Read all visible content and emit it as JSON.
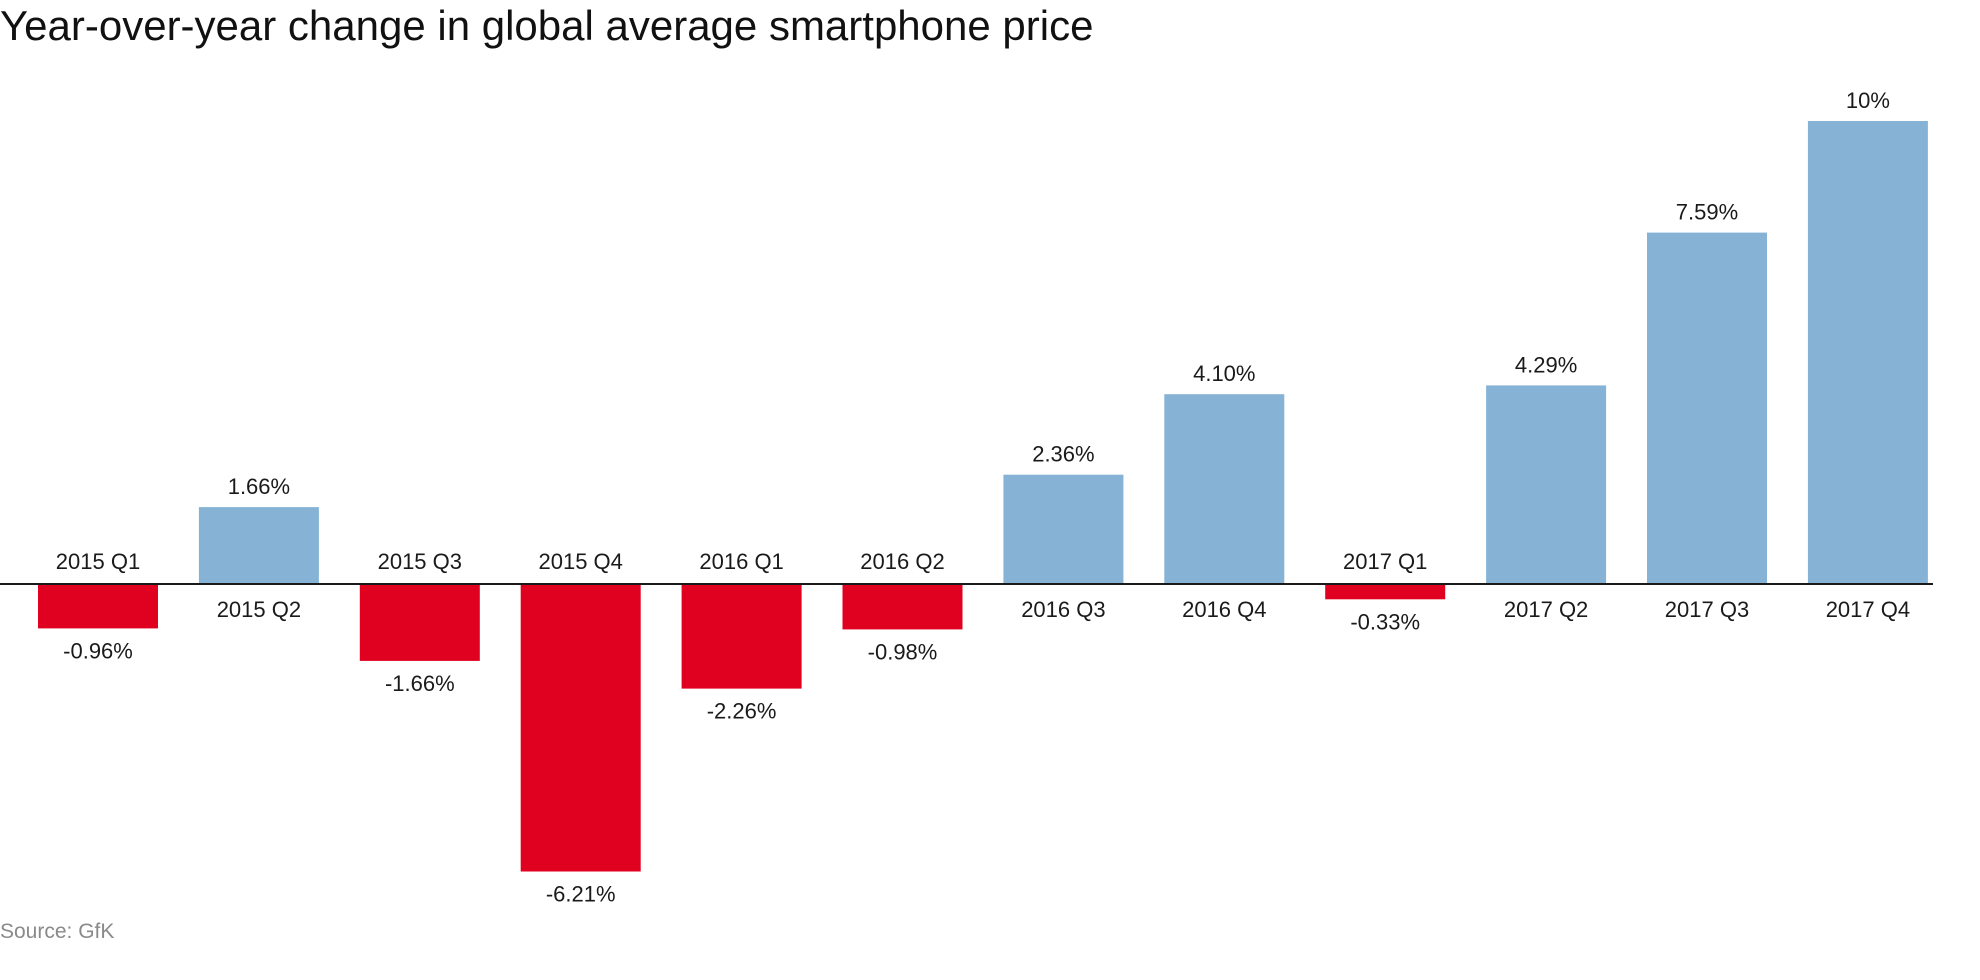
{
  "chart_data": {
    "type": "bar",
    "title": "Year-over-year change in global average smartphone price",
    "xlabel": "",
    "ylabel": "",
    "source": "Source: GfK",
    "categories": [
      "2015 Q1",
      "2015 Q2",
      "2015 Q3",
      "2015 Q4",
      "2016 Q1",
      "2016 Q2",
      "2016 Q3",
      "2016 Q4",
      "2017 Q1",
      "2017 Q2",
      "2017 Q3",
      "2017 Q4"
    ],
    "values": [
      -0.96,
      1.66,
      -1.66,
      -6.21,
      -2.26,
      -0.98,
      2.36,
      4.1,
      -0.33,
      4.29,
      7.59,
      10
    ],
    "value_labels": [
      "-0.96%",
      "1.66%",
      "-1.66%",
      "-6.21%",
      "-2.26%",
      "-0.98%",
      "2.36%",
      "4.10%",
      "-0.33%",
      "4.29%",
      "7.59%",
      "10%"
    ],
    "ylim": [
      -6.21,
      10
    ],
    "grid": false,
    "legend": "none",
    "colors": {
      "positive": "#86b3d5",
      "negative": "#e0001f",
      "baseline": "#1a1a1a"
    }
  }
}
